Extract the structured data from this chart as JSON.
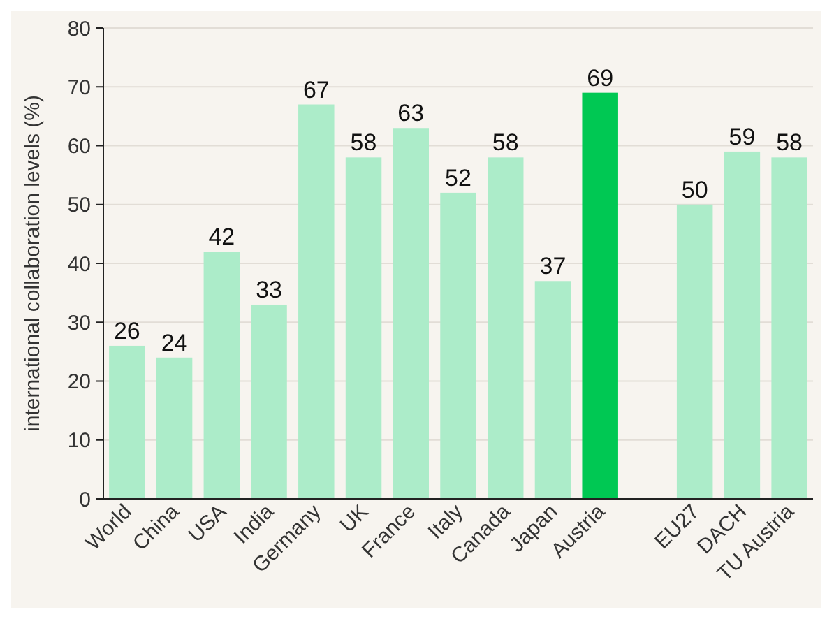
{
  "chart_data": {
    "type": "bar",
    "ylabel": "international collaboration levels (%)",
    "categories": [
      "World",
      "China",
      "USA",
      "India",
      "Germany",
      "UK",
      "France",
      "Italy",
      "Canada",
      "Japan",
      "Austria",
      null,
      "EU27",
      "DACH",
      "TU Austria"
    ],
    "values": [
      26,
      24,
      42,
      33,
      67,
      58,
      63,
      52,
      58,
      37,
      69,
      null,
      50,
      59,
      58
    ],
    "colors": [
      "#acecc9",
      "#acecc9",
      "#acecc9",
      "#acecc9",
      "#acecc9",
      "#acecc9",
      "#acecc9",
      "#acecc9",
      "#acecc9",
      "#acecc9",
      "#00c853",
      null,
      "#acecc9",
      "#acecc9",
      "#acecc9"
    ],
    "ylim": [
      0,
      80
    ],
    "yticks": [
      0,
      10,
      20,
      30,
      40,
      50,
      60,
      70,
      80
    ],
    "grid": "y",
    "data_labels": true
  }
}
